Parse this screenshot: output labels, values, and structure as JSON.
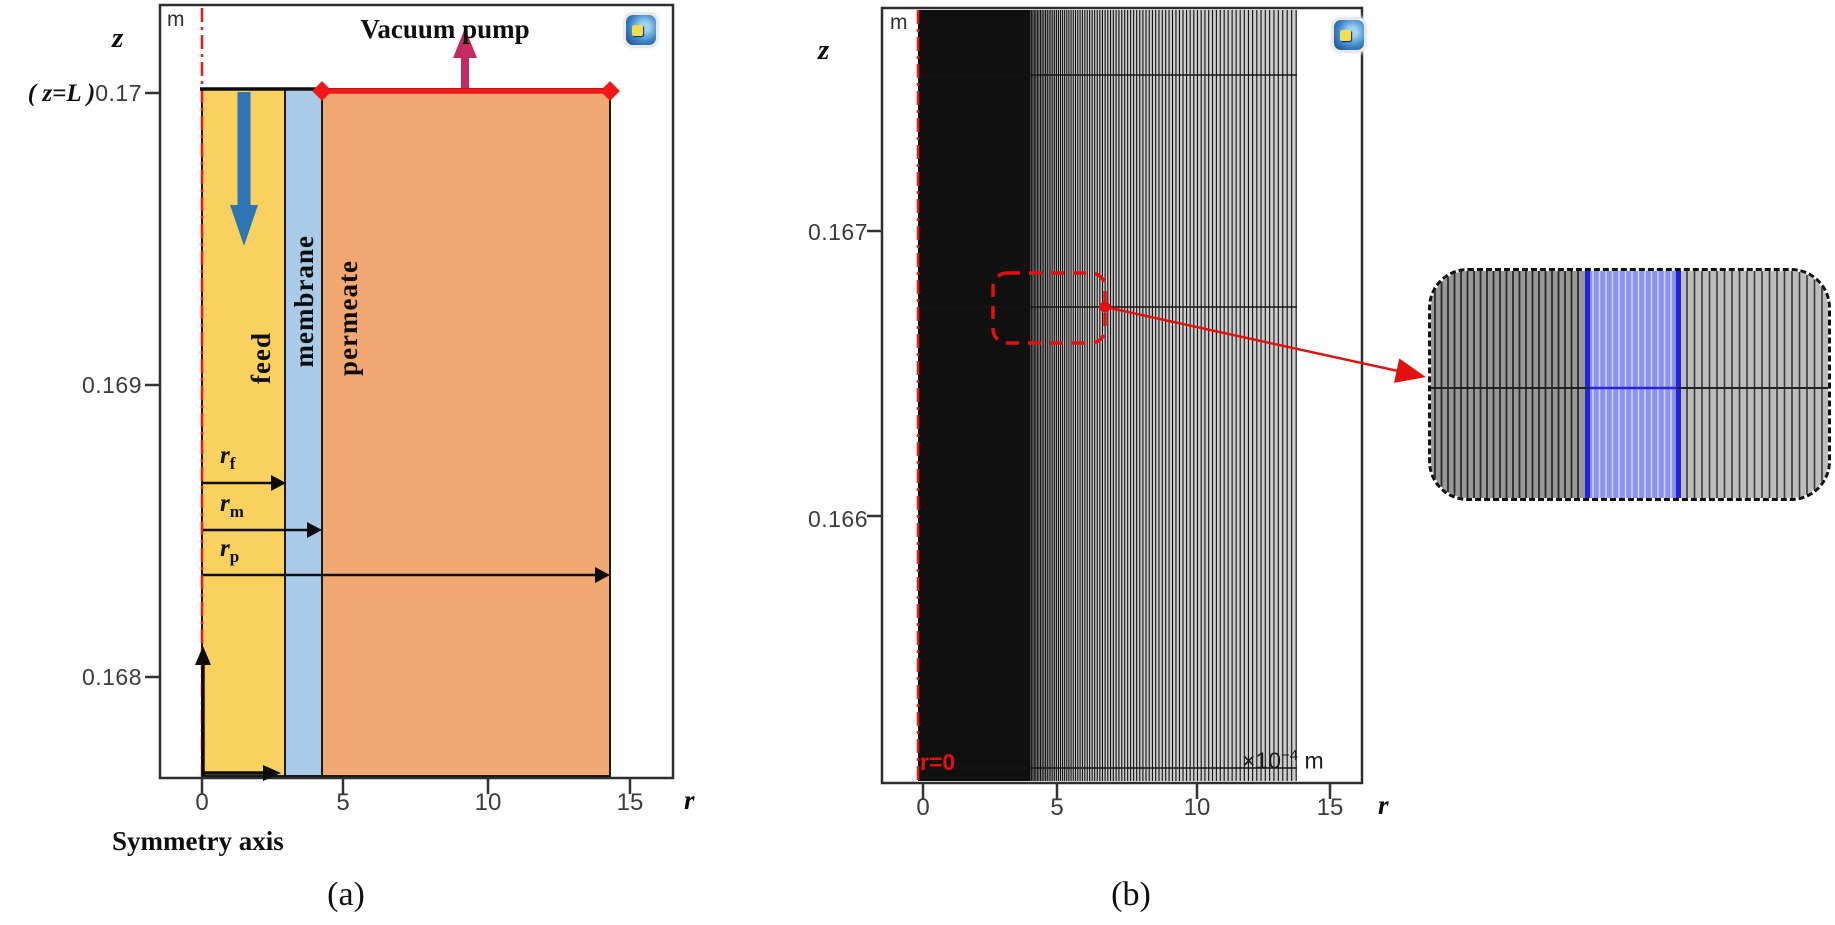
{
  "colors": {
    "feed": "#F8D15F",
    "membrane": "#A9CBE8",
    "permeate": "#F1A873",
    "axis_red": "#F01818",
    "vacuum_arrow": "#C42A62",
    "feed_flow_arrow": "#2E75B6",
    "inset_membrane_fill": "#8A93EF",
    "inset_membrane_border": "#2424DE",
    "inset_membrane_line": "#CED3FB",
    "mesh_black": "#101010",
    "plot_frame": "#2e2e2e",
    "tick_text": "#3c3c3c"
  },
  "panel_a": {
    "caption": "(a)",
    "plot_unit": "m",
    "y_label": "z",
    "y_annotation": "( z=L )",
    "y_ticks": [
      "0.17",
      "0.169",
      "0.168"
    ],
    "x_ticks": [
      "0",
      "5",
      "10",
      "15"
    ],
    "x_label": "r",
    "vacuum_pump_label": "Vacuum pump",
    "symmetry_axis_label": "Symmetry axis",
    "regions": [
      {
        "label": "feed",
        "r_from": 0,
        "r_to": 3
      },
      {
        "label": "membrane",
        "r_from": 3,
        "r_to": 4
      },
      {
        "label": "permeate",
        "r_from": 4,
        "r_to": 14
      }
    ],
    "radius_markers": [
      {
        "base": "r",
        "sub": "f"
      },
      {
        "base": "r",
        "sub": "m"
      },
      {
        "base": "r",
        "sub": "p"
      }
    ]
  },
  "panel_b": {
    "caption": "(b)",
    "plot_unit": "m",
    "y_label": "z",
    "y_ticks": [
      "0.167",
      "0.166"
    ],
    "x_ticks": [
      "0",
      "5",
      "10",
      "15"
    ],
    "x_label": "r",
    "axis_origin_label": "r=0",
    "scale": {
      "base": "×10",
      "exp": "−4",
      "unit": "m"
    },
    "mesh_note": "mapped mesh, strongly refined toward r=0; domain r=0 to 14 (×10⁻⁴ m); zoom inset highlights membrane band in blue"
  }
}
